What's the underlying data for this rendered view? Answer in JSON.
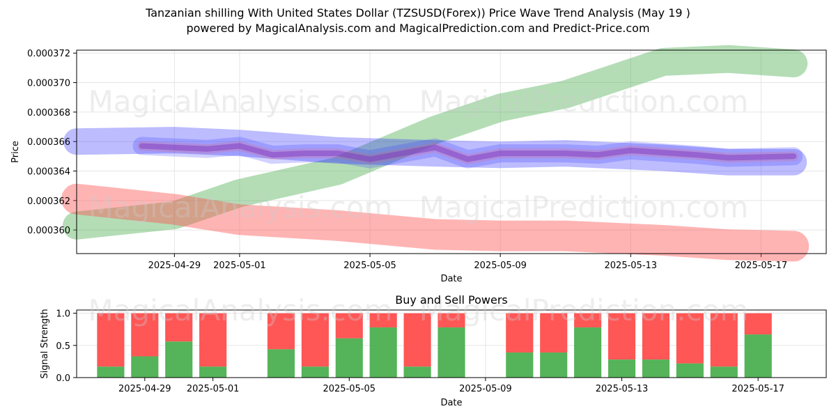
{
  "title": "Tanzanian shilling With United States Dollar (TZSUSD(Forex)) Price Wave Trend Analysis (May 19 )",
  "subtitle": "powered by MagicalAnalysis.com and MagicalPrediction.com and Predict-Price.com",
  "watermarks": [
    "MagicalAnalysis.com",
    "MagicalPrediction.com"
  ],
  "chart_data": [
    {
      "type": "line",
      "xlabel": "Date",
      "ylabel": "Price",
      "x_ticks": [
        "2025-04-29",
        "2025-05-01",
        "2025-05-05",
        "2025-05-09",
        "2025-05-13",
        "2025-05-17"
      ],
      "y_ticks": [
        "0.000360",
        "0.000362",
        "0.000364",
        "0.000366",
        "0.000368",
        "0.000370",
        "0.000372"
      ],
      "ylim": [
        0.0003584,
        0.0003722
      ],
      "xlim": [
        "2025-04-26",
        "2025-05-19"
      ],
      "grid": true,
      "colors": {
        "green": "#4caf50",
        "red": "#ff4d4d",
        "blue": "#3333ff",
        "purple": "#7a2fbf"
      },
      "bands": [
        {
          "color": "green",
          "points": [
            [
              "2025-04-26",
              0.0003603
            ],
            [
              "2025-04-29",
              0.000361
            ],
            [
              "2025-05-01",
              0.0003625
            ],
            [
              "2025-05-04",
              0.000364
            ],
            [
              "2025-05-07",
              0.0003668
            ],
            [
              "2025-05-09",
              0.0003683
            ],
            [
              "2025-05-11",
              0.0003692
            ],
            [
              "2025-05-14",
              0.0003714
            ],
            [
              "2025-05-16",
              0.0003716
            ],
            [
              "2025-05-18",
              0.0003713
            ]
          ]
        },
        {
          "color": "red",
          "points": [
            [
              "2025-04-26",
              0.0003621
            ],
            [
              "2025-04-29",
              0.0003614
            ],
            [
              "2025-05-01",
              0.0003607
            ],
            [
              "2025-05-04",
              0.0003603
            ],
            [
              "2025-05-07",
              0.0003597
            ],
            [
              "2025-05-09",
              0.0003596
            ],
            [
              "2025-05-11",
              0.0003596
            ],
            [
              "2025-05-14",
              0.0003593
            ],
            [
              "2025-05-16",
              0.000359
            ],
            [
              "2025-05-18",
              0.0003589
            ]
          ]
        },
        {
          "color": "blue",
          "points": [
            [
              "2025-04-26",
              0.000366
            ],
            [
              "2025-04-29",
              0.0003661
            ],
            [
              "2025-05-01",
              0.0003659
            ],
            [
              "2025-05-04",
              0.0003654
            ],
            [
              "2025-05-07",
              0.0003652
            ],
            [
              "2025-05-09",
              0.0003651
            ],
            [
              "2025-05-11",
              0.0003652
            ],
            [
              "2025-05-14",
              0.0003649
            ],
            [
              "2025-05-16",
              0.0003646
            ],
            [
              "2025-05-18",
              0.0003646
            ]
          ]
        }
      ],
      "price_path": [
        [
          "2025-04-28",
          0.0003657
        ],
        [
          "2025-04-30",
          0.0003655
        ],
        [
          "2025-05-01",
          0.0003657
        ],
        [
          "2025-05-02",
          0.0003651
        ],
        [
          "2025-05-03",
          0.0003652
        ],
        [
          "2025-05-04",
          0.0003652
        ],
        [
          "2025-05-05",
          0.0003648
        ],
        [
          "2025-05-06",
          0.0003652
        ],
        [
          "2025-05-07",
          0.0003656
        ],
        [
          "2025-05-08",
          0.0003648
        ],
        [
          "2025-05-09",
          0.0003652
        ],
        [
          "2025-05-11",
          0.0003652
        ],
        [
          "2025-05-12",
          0.0003651
        ],
        [
          "2025-05-13",
          0.0003654
        ],
        [
          "2025-05-15",
          0.0003651
        ],
        [
          "2025-05-16",
          0.0003649
        ],
        [
          "2025-05-18",
          0.000365
        ]
      ]
    },
    {
      "type": "bar",
      "title": "Buy and Sell Powers",
      "xlabel": "Date",
      "ylabel": "Signal Strength",
      "x_ticks": [
        "2025-04-29",
        "2025-05-01",
        "2025-05-05",
        "2025-05-09",
        "2025-05-13",
        "2025-05-17"
      ],
      "y_ticks": [
        "0.0",
        "0.5",
        "1.0"
      ],
      "ylim": [
        0,
        1.05
      ],
      "xlim": [
        "2025-04-27",
        "2025-05-19"
      ],
      "grid": true,
      "colors": {
        "buy": "#4caf50",
        "sell": "#ff4d4d"
      },
      "categories": [
        "2025-04-28",
        "2025-04-29",
        "2025-04-30",
        "2025-05-01",
        "2025-05-03",
        "2025-05-04",
        "2025-05-05",
        "2025-05-06",
        "2025-05-07",
        "2025-05-08",
        "2025-05-10",
        "2025-05-11",
        "2025-05-12",
        "2025-05-13",
        "2025-05-14",
        "2025-05-15",
        "2025-05-16",
        "2025-05-17"
      ],
      "buy_values": [
        0.17,
        0.33,
        0.56,
        0.17,
        0.44,
        0.17,
        0.61,
        0.78,
        0.17,
        0.78,
        0.39,
        0.39,
        0.78,
        0.28,
        0.28,
        0.22,
        0.17,
        0.67
      ],
      "total": 1.0
    }
  ]
}
